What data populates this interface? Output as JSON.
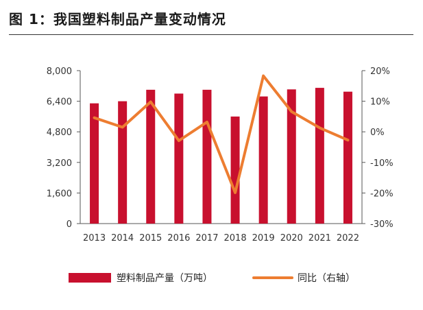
{
  "header": {
    "title": "图 1：我国塑料制品产量变动情况"
  },
  "chart_data": {
    "type": "bar",
    "title": "图 1：我国塑料制品产量变动情况",
    "categories": [
      "2013",
      "2014",
      "2015",
      "2016",
      "2017",
      "2018",
      "2019",
      "2020",
      "2021",
      "2022"
    ],
    "series": [
      {
        "name": "塑料制品产量（万吨）",
        "type": "bar",
        "axis": "left",
        "color": "#C8102E",
        "values": [
          6290,
          6400,
          7000,
          6800,
          7000,
          5600,
          6650,
          7020,
          7100,
          6900
        ]
      },
      {
        "name": "同比（右轴）",
        "type": "line",
        "axis": "right",
        "color": "#ED7D31",
        "values": [
          4.6,
          1.5,
          9.8,
          -2.9,
          3.2,
          -19.9,
          18.3,
          6.6,
          1.3,
          -2.7
        ]
      }
    ],
    "left_axis": {
      "ylim": [
        0,
        8000
      ],
      "ticks": [
        0,
        1600,
        3200,
        4800,
        6400,
        8000
      ],
      "tick_labels": [
        "0",
        "1,600",
        "3,200",
        "4,800",
        "6,400",
        "8,000"
      ]
    },
    "right_axis": {
      "ylim": [
        -30,
        20
      ],
      "ticks": [
        -30,
        -20,
        -10,
        0,
        10,
        20
      ],
      "tick_labels": [
        "-30%",
        "-20%",
        "-10%",
        "0%",
        "10%",
        "20%"
      ]
    },
    "xlabel": "",
    "ylabel": "",
    "legend": {
      "position": "bottom",
      "entries": [
        "塑料制品产量（万吨）",
        "同比（右轴）"
      ]
    },
    "grid": false
  }
}
